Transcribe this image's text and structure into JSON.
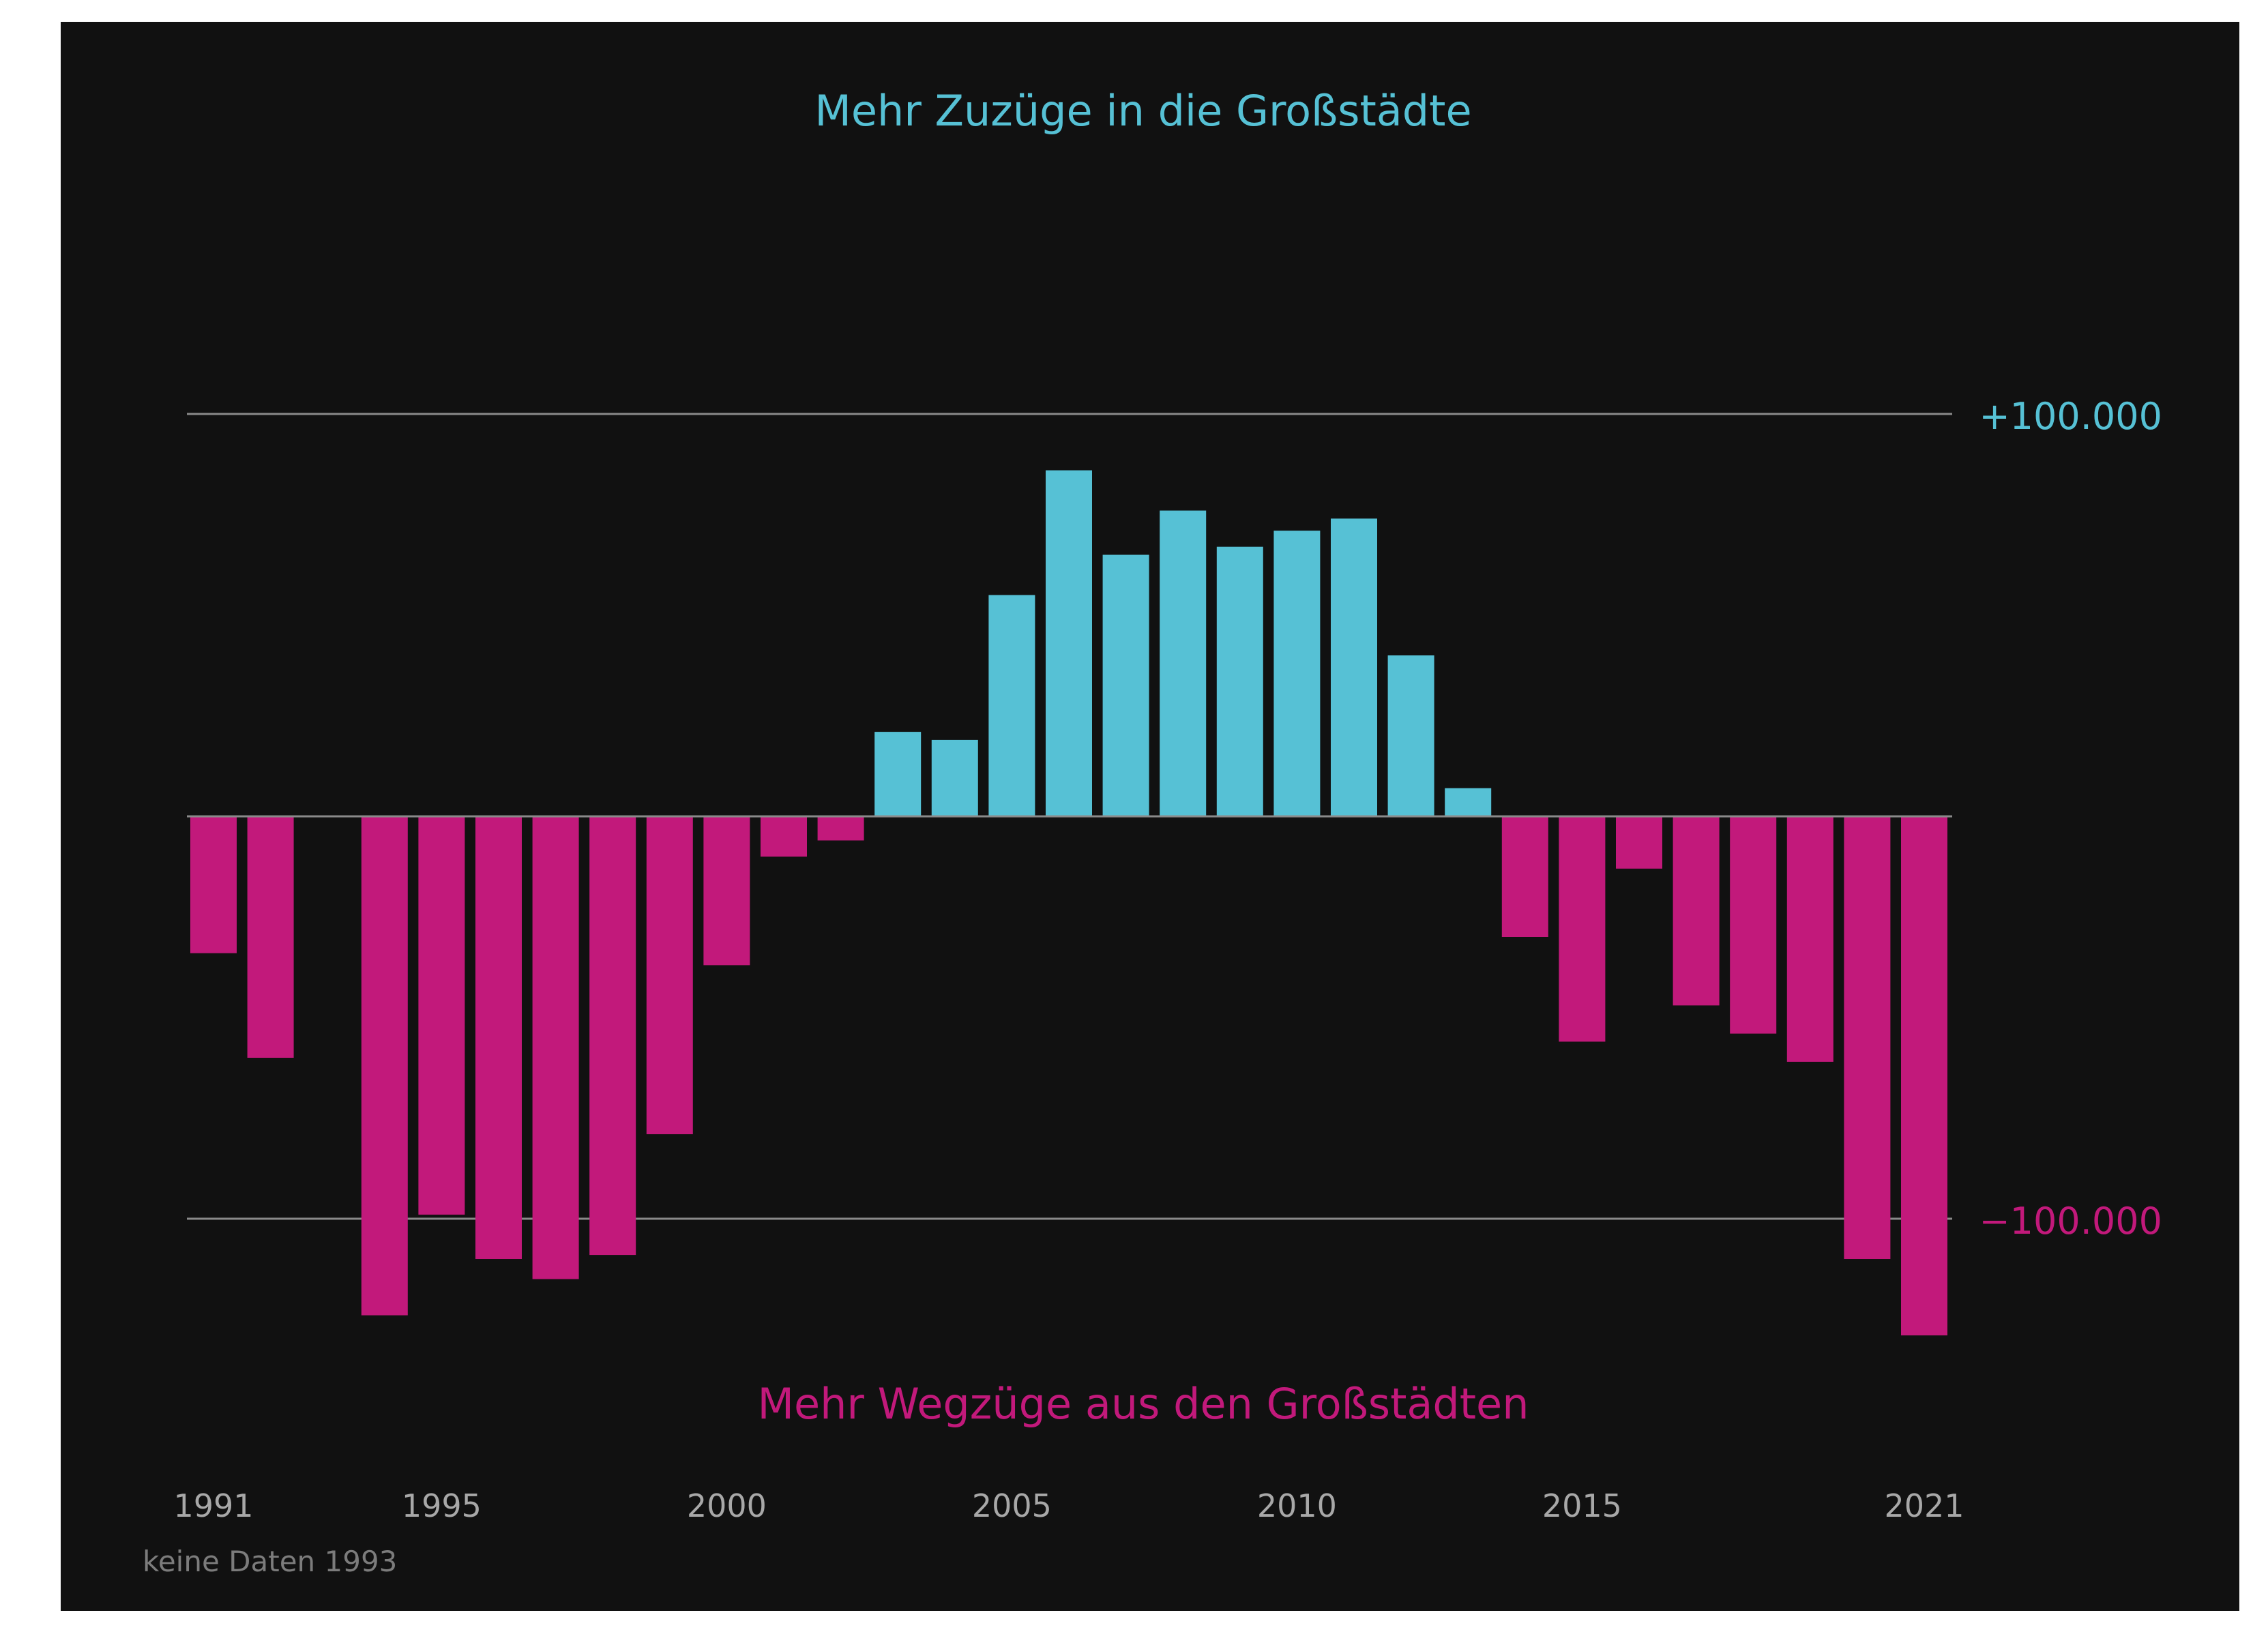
{
  "chart_data": {
    "type": "bar",
    "top_label": "Mehr Zuzüge in die Großstädte",
    "bottom_label": "Mehr Wegzüge aus den Großstädten",
    "note": "keine Daten 1993",
    "x": [
      1991,
      1992,
      1993,
      1994,
      1995,
      1996,
      1997,
      1998,
      1999,
      2000,
      2001,
      2002,
      2003,
      2004,
      2005,
      2006,
      2007,
      2008,
      2009,
      2010,
      2011,
      2012,
      2013,
      2014,
      2015,
      2016,
      2017,
      2018,
      2019,
      2020,
      2021
    ],
    "values": [
      -34000,
      -60000,
      null,
      -124000,
      -99000,
      -110000,
      -115000,
      -109000,
      -79000,
      -37000,
      -10000,
      -6000,
      21000,
      19000,
      55000,
      86000,
      65000,
      76000,
      67000,
      71000,
      74000,
      40000,
      7000,
      -30000,
      -56000,
      -13000,
      -47000,
      -54000,
      -61000,
      -110000,
      -129000
    ],
    "x_ticks": [
      "1991",
      "1995",
      "2000",
      "2005",
      "2010",
      "2015",
      "2021"
    ],
    "y_ticks": [
      {
        "value": 100000,
        "label": "+100.000"
      },
      {
        "value": -100000,
        "label": "−100.000"
      }
    ],
    "ylim": [
      -140000,
      100000
    ],
    "grid": true,
    "colors": {
      "positive": "#56c1d5",
      "negative": "#c2197b",
      "background": "#111111",
      "axis_text": "#a8a8a8",
      "note_text": "#7c7c7c",
      "grid": "#8a8a8a"
    }
  }
}
